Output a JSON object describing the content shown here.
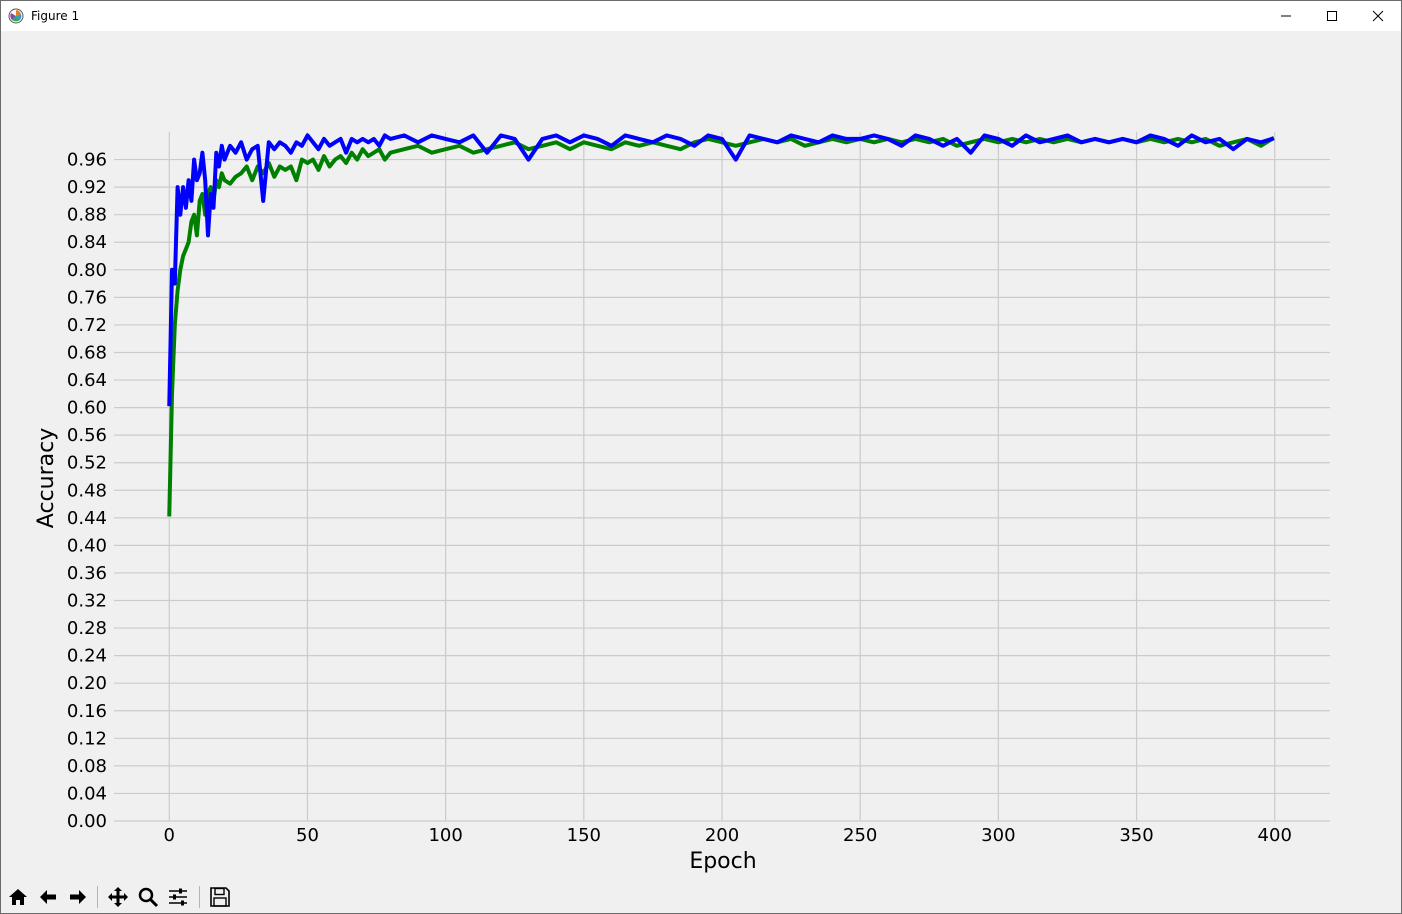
{
  "window": {
    "title": "Figure 1"
  },
  "toolbar": {
    "buttons": [
      {
        "name": "home-icon"
      },
      {
        "name": "back-arrow-icon"
      },
      {
        "name": "forward-arrow-icon"
      },
      {
        "name": "pan-icon"
      },
      {
        "name": "zoom-icon"
      },
      {
        "name": "configure-subplots-icon"
      },
      {
        "name": "save-icon"
      }
    ]
  },
  "colors": {
    "series_train": "#008000",
    "series_val": "#0000ff",
    "grid": "#cbcbcb",
    "background": "#f0f0f0"
  },
  "chart_data": {
    "type": "line",
    "title": "",
    "xlabel": "Epoch",
    "ylabel": "Accuracy",
    "xlim": [
      -20,
      420
    ],
    "ylim": [
      0.0,
      1.0
    ],
    "xticks": [
      0,
      50,
      100,
      150,
      200,
      250,
      300,
      350,
      400
    ],
    "yticks": [
      0.0,
      0.04,
      0.08,
      0.12,
      0.16,
      0.2,
      0.24,
      0.28,
      0.32,
      0.36,
      0.4,
      0.44,
      0.48,
      0.52,
      0.56,
      0.6,
      0.64,
      0.68,
      0.72,
      0.76,
      0.8,
      0.84,
      0.88,
      0.92,
      0.96
    ],
    "ytick_labels": [
      "0.00",
      "0.04",
      "0.08",
      "0.12",
      "0.16",
      "0.20",
      "0.24",
      "0.28",
      "0.32",
      "0.36",
      "0.40",
      "0.44",
      "0.48",
      "0.52",
      "0.56",
      "0.60",
      "0.64",
      "0.68",
      "0.72",
      "0.76",
      "0.80",
      "0.84",
      "0.88",
      "0.92",
      "0.96"
    ],
    "grid": true,
    "legend": "none",
    "series": [
      {
        "color": "#008000",
        "x": [
          0,
          1,
          2,
          3,
          4,
          5,
          6,
          7,
          8,
          9,
          10,
          11,
          12,
          13,
          14,
          15,
          16,
          17,
          18,
          19,
          20,
          22,
          24,
          26,
          28,
          30,
          32,
          34,
          36,
          38,
          40,
          42,
          44,
          46,
          48,
          50,
          52,
          54,
          56,
          58,
          60,
          62,
          64,
          66,
          68,
          70,
          72,
          74,
          76,
          78,
          80,
          85,
          90,
          95,
          100,
          105,
          110,
          115,
          120,
          125,
          130,
          135,
          140,
          145,
          150,
          155,
          160,
          165,
          170,
          175,
          180,
          185,
          190,
          195,
          200,
          205,
          210,
          215,
          220,
          225,
          230,
          235,
          240,
          245,
          250,
          255,
          260,
          265,
          270,
          275,
          280,
          285,
          290,
          295,
          300,
          305,
          310,
          315,
          320,
          325,
          330,
          335,
          340,
          345,
          350,
          355,
          360,
          365,
          370,
          375,
          380,
          385,
          390,
          395,
          399
        ],
        "y": [
          0.445,
          0.62,
          0.72,
          0.77,
          0.8,
          0.82,
          0.83,
          0.84,
          0.87,
          0.88,
          0.85,
          0.9,
          0.91,
          0.88,
          0.91,
          0.92,
          0.9,
          0.93,
          0.92,
          0.94,
          0.93,
          0.925,
          0.935,
          0.94,
          0.95,
          0.93,
          0.95,
          0.94,
          0.955,
          0.935,
          0.95,
          0.945,
          0.95,
          0.93,
          0.96,
          0.955,
          0.96,
          0.945,
          0.965,
          0.95,
          0.96,
          0.965,
          0.955,
          0.97,
          0.96,
          0.975,
          0.965,
          0.97,
          0.975,
          0.96,
          0.97,
          0.975,
          0.98,
          0.97,
          0.975,
          0.98,
          0.97,
          0.975,
          0.98,
          0.985,
          0.975,
          0.98,
          0.985,
          0.975,
          0.985,
          0.98,
          0.975,
          0.985,
          0.98,
          0.985,
          0.98,
          0.975,
          0.985,
          0.99,
          0.985,
          0.98,
          0.985,
          0.99,
          0.985,
          0.99,
          0.98,
          0.985,
          0.99,
          0.985,
          0.99,
          0.985,
          0.99,
          0.985,
          0.99,
          0.985,
          0.99,
          0.98,
          0.985,
          0.99,
          0.985,
          0.99,
          0.985,
          0.99,
          0.985,
          0.99,
          0.985,
          0.99,
          0.985,
          0.99,
          0.985,
          0.99,
          0.985,
          0.99,
          0.985,
          0.99,
          0.98,
          0.985,
          0.99,
          0.98,
          0.99
        ]
      },
      {
        "color": "#0000ff",
        "x": [
          0,
          1,
          2,
          3,
          4,
          5,
          6,
          7,
          8,
          9,
          10,
          11,
          12,
          13,
          14,
          15,
          16,
          17,
          18,
          19,
          20,
          22,
          24,
          26,
          28,
          30,
          32,
          34,
          36,
          38,
          40,
          42,
          44,
          46,
          48,
          50,
          52,
          54,
          56,
          58,
          60,
          62,
          64,
          66,
          68,
          70,
          72,
          74,
          76,
          78,
          80,
          85,
          90,
          95,
          100,
          105,
          110,
          115,
          120,
          125,
          130,
          135,
          140,
          145,
          150,
          155,
          160,
          165,
          170,
          175,
          180,
          185,
          190,
          195,
          200,
          205,
          210,
          215,
          220,
          225,
          230,
          235,
          240,
          245,
          250,
          255,
          260,
          265,
          270,
          275,
          280,
          285,
          290,
          295,
          300,
          305,
          310,
          315,
          320,
          325,
          330,
          335,
          340,
          345,
          350,
          355,
          360,
          365,
          370,
          375,
          380,
          385,
          390,
          395,
          399
        ],
        "y": [
          0.605,
          0.8,
          0.78,
          0.92,
          0.88,
          0.92,
          0.89,
          0.93,
          0.9,
          0.96,
          0.93,
          0.94,
          0.97,
          0.93,
          0.85,
          0.91,
          0.89,
          0.97,
          0.95,
          0.98,
          0.96,
          0.98,
          0.97,
          0.985,
          0.96,
          0.975,
          0.98,
          0.9,
          0.985,
          0.975,
          0.985,
          0.98,
          0.97,
          0.985,
          0.98,
          0.995,
          0.985,
          0.975,
          0.99,
          0.98,
          0.985,
          0.99,
          0.97,
          0.99,
          0.985,
          0.99,
          0.985,
          0.99,
          0.98,
          0.995,
          0.99,
          0.995,
          0.985,
          0.995,
          0.99,
          0.985,
          0.995,
          0.97,
          0.995,
          0.99,
          0.96,
          0.99,
          0.995,
          0.985,
          0.995,
          0.99,
          0.98,
          0.995,
          0.99,
          0.985,
          0.995,
          0.99,
          0.98,
          0.995,
          0.99,
          0.96,
          0.995,
          0.99,
          0.985,
          0.995,
          0.99,
          0.985,
          0.995,
          0.99,
          0.99,
          0.995,
          0.99,
          0.98,
          0.995,
          0.99,
          0.98,
          0.99,
          0.97,
          0.995,
          0.99,
          0.98,
          0.995,
          0.985,
          0.99,
          0.995,
          0.985,
          0.99,
          0.985,
          0.99,
          0.985,
          0.995,
          0.99,
          0.98,
          0.995,
          0.985,
          0.99,
          0.975,
          0.99,
          0.985,
          0.99
        ]
      }
    ]
  }
}
